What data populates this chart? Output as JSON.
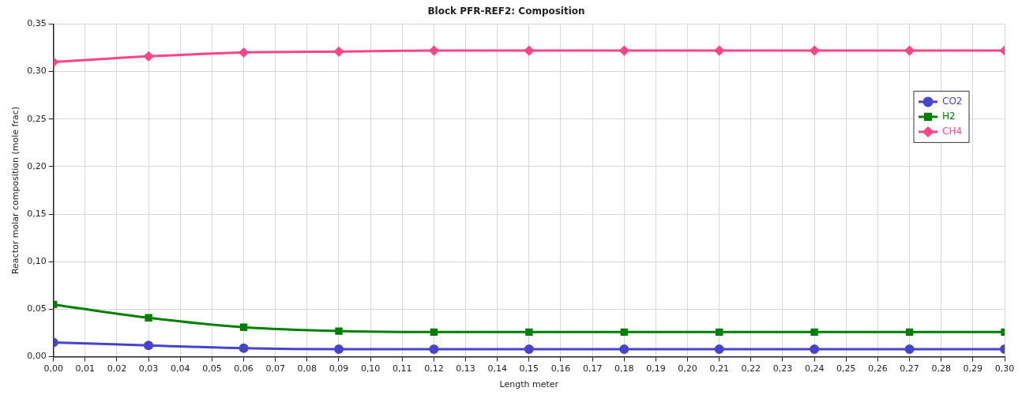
{
  "chart_data": {
    "type": "line",
    "title": "Block PFR-REF2: Composition",
    "xlabel": "Length meter",
    "ylabel": "Reactor molar composition (mole frac)",
    "x": [
      0,
      0.03,
      0.06,
      0.09,
      0.12,
      0.15,
      0.18,
      0.21,
      0.24,
      0.27,
      0.3
    ],
    "xlim": [
      0,
      0.3
    ],
    "xticks": [
      {
        "value": 0,
        "label": "0,00"
      },
      {
        "value": 0.01,
        "label": "0,01"
      },
      {
        "value": 0.02,
        "label": "0,02"
      },
      {
        "value": 0.03,
        "label": "0,03"
      },
      {
        "value": 0.04,
        "label": "0,04"
      },
      {
        "value": 0.05,
        "label": "0,05"
      },
      {
        "value": 0.06,
        "label": "0,06"
      },
      {
        "value": 0.07,
        "label": "0,07"
      },
      {
        "value": 0.08,
        "label": "0,08"
      },
      {
        "value": 0.09,
        "label": "0,09"
      },
      {
        "value": 0.1,
        "label": "0,10"
      },
      {
        "value": 0.11,
        "label": "0,11"
      },
      {
        "value": 0.12,
        "label": "0,12"
      },
      {
        "value": 0.13,
        "label": "0,13"
      },
      {
        "value": 0.14,
        "label": "0,14"
      },
      {
        "value": 0.15,
        "label": "0,15"
      },
      {
        "value": 0.16,
        "label": "0,16"
      },
      {
        "value": 0.17,
        "label": "0,17"
      },
      {
        "value": 0.18,
        "label": "0,18"
      },
      {
        "value": 0.19,
        "label": "0,19"
      },
      {
        "value": 0.2,
        "label": "0,20"
      },
      {
        "value": 0.21,
        "label": "0,21"
      },
      {
        "value": 0.22,
        "label": "0,22"
      },
      {
        "value": 0.23,
        "label": "0,23"
      },
      {
        "value": 0.24,
        "label": "0,24"
      },
      {
        "value": 0.25,
        "label": "0,25"
      },
      {
        "value": 0.26,
        "label": "0,26"
      },
      {
        "value": 0.27,
        "label": "0,27"
      },
      {
        "value": 0.28,
        "label": "0,28"
      },
      {
        "value": 0.29,
        "label": "0,29"
      },
      {
        "value": 0.3,
        "label": "0,30"
      }
    ],
    "ylim": [
      0,
      0.35
    ],
    "yticks": [
      {
        "value": 0,
        "label": "0,00"
      },
      {
        "value": 0.05,
        "label": "0,05"
      },
      {
        "value": 0.1,
        "label": "0,10"
      },
      {
        "value": 0.15,
        "label": "0,15"
      },
      {
        "value": 0.2,
        "label": "0,20"
      },
      {
        "value": 0.25,
        "label": "0,25"
      },
      {
        "value": 0.3,
        "label": "0,30"
      },
      {
        "value": 0.35,
        "label": "0,35"
      }
    ],
    "grid": true,
    "legend": "right",
    "series": [
      {
        "name": "CO2",
        "color": "#4444cc",
        "marker": "circle",
        "values": [
          0.015,
          0.012,
          0.009,
          0.008,
          0.008,
          0.008,
          0.008,
          0.008,
          0.008,
          0.008,
          0.008
        ]
      },
      {
        "name": "H2",
        "color": "#008000",
        "marker": "square",
        "values": [
          0.055,
          0.041,
          0.031,
          0.027,
          0.026,
          0.026,
          0.026,
          0.026,
          0.026,
          0.026,
          0.026
        ]
      },
      {
        "name": "CH4",
        "color": "#ff4488",
        "marker": "diamond",
        "values": [
          0.31,
          0.316,
          0.32,
          0.321,
          0.322,
          0.322,
          0.322,
          0.322,
          0.322,
          0.322,
          0.322
        ]
      }
    ]
  }
}
